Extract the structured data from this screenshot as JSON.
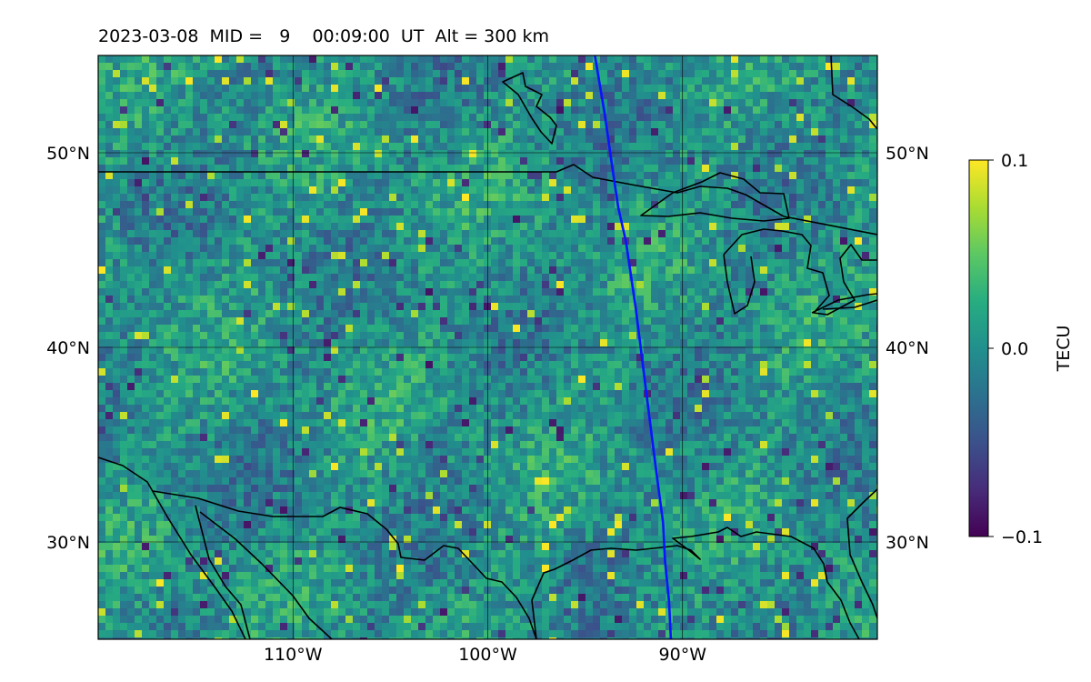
{
  "title": "2023-03-08  MID =   9    00:09:00  UT  Alt = 300 km",
  "map": {
    "projection": "PlateCarree",
    "lon_range": [
      -120,
      -80
    ],
    "lat_range": [
      25,
      55
    ],
    "gridlines": true,
    "lat_ticks": [
      {
        "value": 30,
        "label": "30°N"
      },
      {
        "value": 40,
        "label": "40°N"
      },
      {
        "value": 50,
        "label": "50°N"
      }
    ],
    "lon_ticks": [
      {
        "value": -110,
        "label": "110°W"
      },
      {
        "value": -100,
        "label": "100°W"
      },
      {
        "value": -90,
        "label": "90°W"
      }
    ],
    "coastlines_and_borders": true,
    "satellite_track": {
      "color": "#0a14ff",
      "points": [
        [
          -94.5,
          55
        ],
        [
          -94.0,
          52
        ],
        [
          -93.6,
          49.2
        ],
        [
          -93.3,
          47.2
        ],
        [
          -92.9,
          45.4
        ],
        [
          -92.4,
          42
        ],
        [
          -91.9,
          38
        ],
        [
          -91.4,
          34
        ],
        [
          -91.0,
          31
        ],
        [
          -90.9,
          29
        ],
        [
          -90.7,
          27
        ],
        [
          -90.6,
          25
        ]
      ]
    }
  },
  "colorbar": {
    "label": "TECU",
    "colormap": "viridis",
    "min": -0.1,
    "max": 0.1,
    "ticks": [
      {
        "value": 0.1,
        "label": "0.1"
      },
      {
        "value": 0.0,
        "label": "0.0"
      },
      {
        "value": -0.1,
        "label": "−0.1"
      }
    ]
  },
  "colors": {
    "track": "#0a14ff",
    "coast": "#000000",
    "grid": "#000000"
  }
}
